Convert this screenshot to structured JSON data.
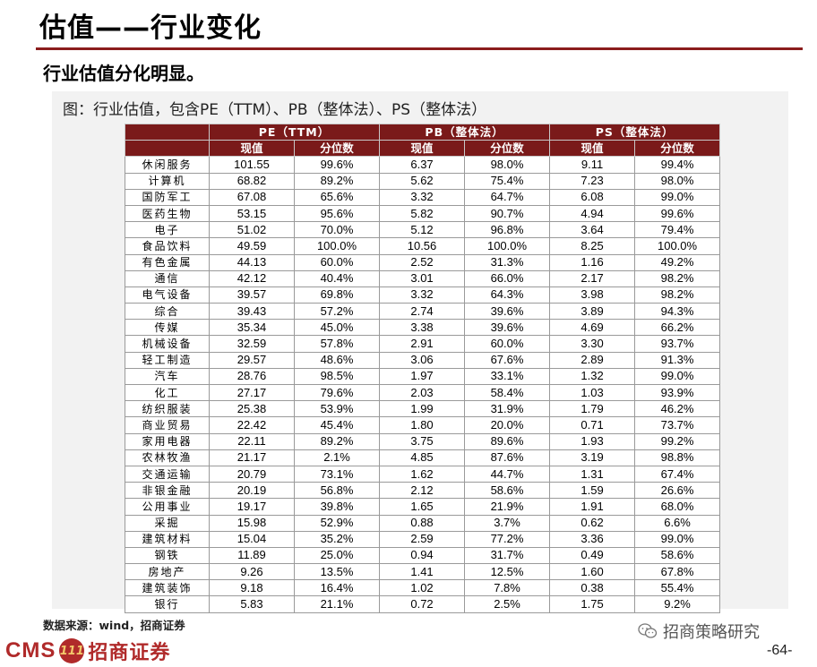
{
  "page": {
    "title": "估值——行业变化",
    "subtitle": "行业估值分化明显。",
    "caption": "图：行业估值，包含PE（TTM）、PB（整体法）、PS（整体法）",
    "source": "数据来源：wind，招商证券",
    "page_number": "-64-"
  },
  "brand": {
    "cms": "CMS",
    "mark": "111",
    "name": "招商证券",
    "wechat": "招商策略研究",
    "color": "#b02a2a",
    "header_color": "#7a1a1a"
  },
  "table": {
    "groups": [
      "PE（TTM）",
      "PB（整体法）",
      "PS（整体法）"
    ],
    "subheaders": [
      "现值",
      "分位数",
      "现值",
      "分位数",
      "现值",
      "分位数"
    ],
    "rows": [
      {
        "name": "休闲服务",
        "cells": [
          "101.55",
          "99.6%",
          "6.37",
          "98.0%",
          "9.11",
          "99.4%"
        ]
      },
      {
        "name": "计算机",
        "cells": [
          "68.82",
          "89.2%",
          "5.62",
          "75.4%",
          "7.23",
          "98.0%"
        ]
      },
      {
        "name": "国防军工",
        "cells": [
          "67.08",
          "65.6%",
          "3.32",
          "64.7%",
          "6.08",
          "99.0%"
        ]
      },
      {
        "name": "医药生物",
        "cells": [
          "53.15",
          "95.6%",
          "5.82",
          "90.7%",
          "4.94",
          "99.6%"
        ]
      },
      {
        "name": "电子",
        "cells": [
          "51.02",
          "70.0%",
          "5.12",
          "96.8%",
          "3.64",
          "79.4%"
        ]
      },
      {
        "name": "食品饮料",
        "cells": [
          "49.59",
          "100.0%",
          "10.56",
          "100.0%",
          "8.25",
          "100.0%"
        ]
      },
      {
        "name": "有色金属",
        "cells": [
          "44.13",
          "60.0%",
          "2.52",
          "31.3%",
          "1.16",
          "49.2%"
        ]
      },
      {
        "name": "通信",
        "cells": [
          "42.12",
          "40.4%",
          "3.01",
          "66.0%",
          "2.17",
          "98.2%"
        ]
      },
      {
        "name": "电气设备",
        "cells": [
          "39.57",
          "69.8%",
          "3.32",
          "64.3%",
          "3.98",
          "98.2%"
        ]
      },
      {
        "name": "综合",
        "cells": [
          "39.43",
          "57.2%",
          "2.74",
          "39.6%",
          "3.89",
          "94.3%"
        ]
      },
      {
        "name": "传媒",
        "cells": [
          "35.34",
          "45.0%",
          "3.38",
          "39.6%",
          "4.69",
          "66.2%"
        ]
      },
      {
        "name": "机械设备",
        "cells": [
          "32.59",
          "57.8%",
          "2.91",
          "60.0%",
          "3.30",
          "93.7%"
        ]
      },
      {
        "name": "轻工制造",
        "cells": [
          "29.57",
          "48.6%",
          "3.06",
          "67.6%",
          "2.89",
          "91.3%"
        ]
      },
      {
        "name": "汽车",
        "cells": [
          "28.76",
          "98.5%",
          "1.97",
          "33.1%",
          "1.32",
          "99.0%"
        ]
      },
      {
        "name": "化工",
        "cells": [
          "27.17",
          "79.6%",
          "2.03",
          "58.4%",
          "1.03",
          "93.9%"
        ]
      },
      {
        "name": "纺织服装",
        "cells": [
          "25.38",
          "53.9%",
          "1.99",
          "31.9%",
          "1.79",
          "46.2%"
        ]
      },
      {
        "name": "商业贸易",
        "cells": [
          "22.42",
          "45.4%",
          "1.80",
          "20.0%",
          "0.71",
          "73.7%"
        ]
      },
      {
        "name": "家用电器",
        "cells": [
          "22.11",
          "89.2%",
          "3.75",
          "89.6%",
          "1.93",
          "99.2%"
        ]
      },
      {
        "name": "农林牧渔",
        "cells": [
          "21.17",
          "2.1%",
          "4.85",
          "87.6%",
          "3.19",
          "98.8%"
        ]
      },
      {
        "name": "交通运输",
        "cells": [
          "20.79",
          "73.1%",
          "1.62",
          "44.7%",
          "1.31",
          "67.4%"
        ]
      },
      {
        "name": "非银金融",
        "cells": [
          "20.19",
          "56.8%",
          "2.12",
          "58.6%",
          "1.59",
          "26.6%"
        ]
      },
      {
        "name": "公用事业",
        "cells": [
          "19.17",
          "39.8%",
          "1.65",
          "21.9%",
          "1.91",
          "68.0%"
        ]
      },
      {
        "name": "采掘",
        "cells": [
          "15.98",
          "52.9%",
          "0.88",
          "3.7%",
          "0.62",
          "6.6%"
        ]
      },
      {
        "name": "建筑材料",
        "cells": [
          "15.04",
          "35.2%",
          "2.59",
          "77.2%",
          "3.36",
          "99.0%"
        ]
      },
      {
        "name": "钢铁",
        "cells": [
          "11.89",
          "25.0%",
          "0.94",
          "31.7%",
          "0.49",
          "58.6%"
        ]
      },
      {
        "name": "房地产",
        "cells": [
          "9.26",
          "13.5%",
          "1.41",
          "12.5%",
          "1.60",
          "67.8%"
        ]
      },
      {
        "name": "建筑装饰",
        "cells": [
          "9.18",
          "16.4%",
          "1.02",
          "7.8%",
          "0.38",
          "55.4%"
        ]
      },
      {
        "name": "银行",
        "cells": [
          "5.83",
          "21.1%",
          "0.72",
          "2.5%",
          "1.75",
          "9.2%"
        ]
      }
    ]
  }
}
